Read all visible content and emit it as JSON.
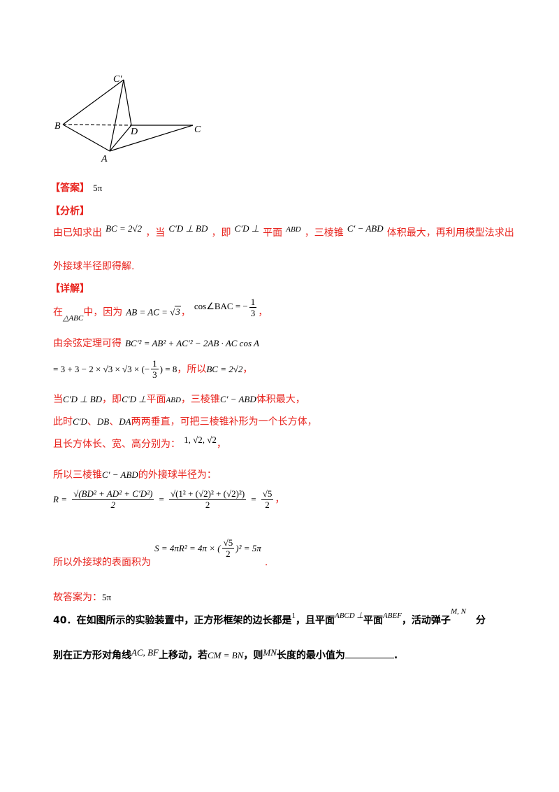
{
  "figure": {
    "labels": {
      "C_prime": "C′",
      "B": "B",
      "D": "D",
      "C": "C",
      "A": "A"
    }
  },
  "answer": {
    "tag": "【答案】",
    "value": "5π"
  },
  "analysis": {
    "tag": "【分析】",
    "l1_a": "由已知求出",
    "l1_m1": "BC = 2√2",
    "l1_b": "，当",
    "l1_m2": "C′D ⊥ BD",
    "l1_c": "，即",
    "l1_m3": "C′D ⊥",
    "l1_d": "平面",
    "l1_m4": "ABD",
    "l1_e": "，三棱锥",
    "l1_m5": "C′ − ABD",
    "l1_f": "体积最大，再利用模型法求出",
    "l2": "外接球半径即得解."
  },
  "detail": {
    "tag": "【详解】",
    "d1_a": "在",
    "d1_m1": "△ABC",
    "d1_b": "中，因为",
    "d1_m2a": "AB = AC = ",
    "d1_m2b": "3",
    "d1_c": "，",
    "d1_m3a": "cos∠BAC = −",
    "d1_m3_num": "1",
    "d1_m3_den": "3",
    "d1_d": "，",
    "d2_a": "由余弦定理可得",
    "d2_m": "BC′² = AB² + AC′² − 2AB · AC cos A",
    "d3_m1": "= 3 + 3 − 2 × √3 × √3 × (−",
    "d3_num": "1",
    "d3_den": "3",
    "d3_m2": ") = 8",
    "d3_a": "，所以",
    "d3_m3": "BC = 2√2",
    "d3_b": "，",
    "d4_a": "当",
    "d4_m1": "C′D ⊥ BD",
    "d4_b": "，即",
    "d4_m2": "C′D ⊥",
    "d4_c": "平面",
    "d4_m3": "ABD",
    "d4_d": "，三棱锥",
    "d4_m4": "C′ − ABD",
    "d4_e": "体积最大，",
    "d5_a": "此时",
    "d5_m": "C′D",
    "d5_b": "、",
    "d5_m2": "DB",
    "d5_c": "、",
    "d5_m3": "DA",
    "d5_d": "两两垂直，可把三棱锥补形为一个长方体，",
    "d6_a": "且长方体长、宽、高分别为：",
    "d6_m": "1, √2, √2",
    "d6_b": "，",
    "d7_a": "所以三棱锥",
    "d7_m": "C′ − ABD",
    "d7_b": "的外接球半径为：",
    "d8_r": "R =",
    "d8_num1": "√(BD² + AD² + C′D²)",
    "d8_den1": "2",
    "d8_eq": "=",
    "d8_num2": "√(1² + (√2)² + (√2)²)",
    "d8_den2": "2",
    "d8_eq2": "=",
    "d8_num3": "√5",
    "d8_den3": "2",
    "d8_end": "，",
    "d9_a": "所以外接球的表面积为",
    "d9_m1": "S = 4πR² = 4π × (",
    "d9_num": "√5",
    "d9_den": "2",
    "d9_m2": ")² = 5π",
    "d9_end": ".",
    "d10_a": "故答案为：",
    "d10_m": "5π"
  },
  "question": {
    "number": "40．",
    "q1_a": "在如图所示的实验装置中，正方形框架的边长都是",
    "q1_m1": "1",
    "q1_b": "，且平面",
    "q1_m2": "ABCD ⊥",
    "q1_c": "平面",
    "q1_m3": "ABEF",
    "q1_d": "，活动弹子",
    "q1_m4": "M, N",
    "q1_e": "分",
    "q2_a": "别在正方形对角线",
    "q2_m1": "AC, BF",
    "q2_b": "上移动，若",
    "q2_m2": "CM = BN",
    "q2_c": "，则",
    "q2_m3": "MN",
    "q2_d": "长度的最小值为",
    "q2_e": "."
  }
}
